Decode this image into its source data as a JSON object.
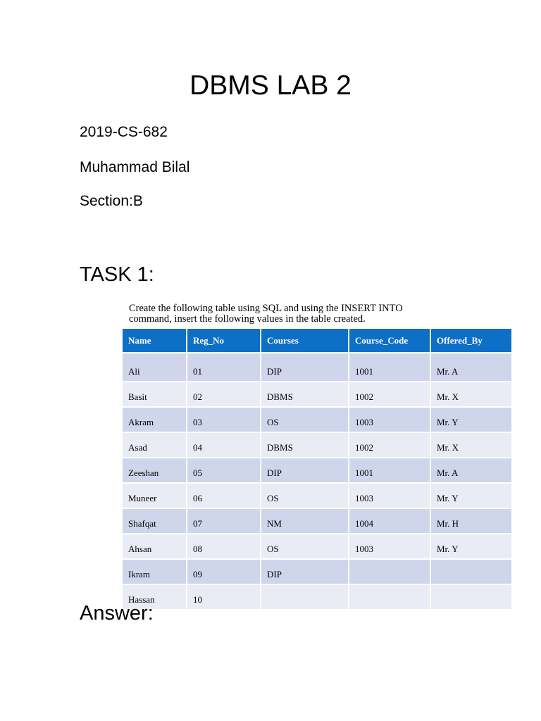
{
  "title": "DBMS LAB 2",
  "reg_no": "2019-CS-682",
  "student_name": "Muhammad Bilal",
  "section": "Section:B",
  "task_heading": "TASK 1:",
  "instruction_line1": "Create the following table using SQL and using the INSERT INTO",
  "instruction_line2": "command, insert the following values in the table created.",
  "table": {
    "headers": [
      "Name",
      "Reg_No",
      "Courses",
      "Course_Code",
      "Offered_By"
    ],
    "rows": [
      [
        "Ali",
        "01",
        "DIP",
        "1001",
        "Mr. A"
      ],
      [
        "Basit",
        "02",
        "DBMS",
        "1002",
        "Mr. X"
      ],
      [
        "Akram",
        "03",
        "OS",
        "1003",
        "Mr. Y"
      ],
      [
        "Asad",
        "04",
        "DBMS",
        "1002",
        "Mr. X"
      ],
      [
        "Zeeshan",
        "05",
        "DIP",
        "1001",
        "Mr. A"
      ],
      [
        "Muneer",
        "06",
        "OS",
        "1003",
        "Mr. Y"
      ],
      [
        "Shafqat",
        "07",
        "NM",
        "1004",
        "Mr. H"
      ],
      [
        "Ahsan",
        "08",
        "OS",
        "1003",
        "Mr. Y"
      ],
      [
        "Ikram",
        "09",
        "DIP",
        "",
        ""
      ],
      [
        "Hassan",
        "10",
        "",
        "",
        ""
      ]
    ]
  },
  "answer_heading": "Answer:",
  "colors": {
    "header_bg": "#0e6fc7",
    "row_odd": "#cfd5ea",
    "row_even": "#e9ebf5"
  }
}
